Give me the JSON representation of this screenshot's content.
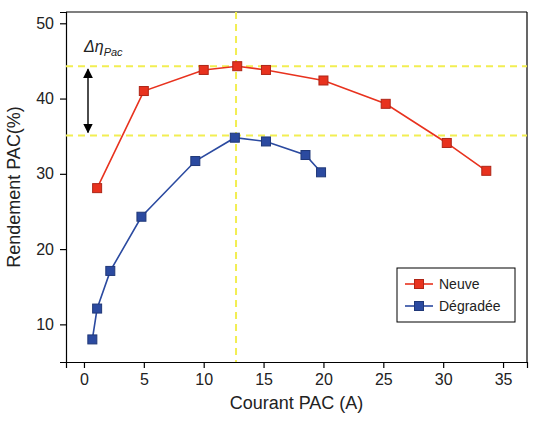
{
  "chart_data": {
    "type": "line",
    "x_label": "Courant PAC (A)",
    "y_label": "Rendement PAC(%)",
    "xlim": [
      -1.5,
      37
    ],
    "xticks": [
      0,
      5,
      10,
      15,
      20,
      25,
      30,
      35
    ],
    "ylim": [
      5,
      51.5
    ],
    "yticks": [
      10,
      20,
      30,
      40,
      50
    ],
    "legend": "lower right",
    "series": [
      {
        "name": "Neuve",
        "color": "#e8321e",
        "marker": "square",
        "line_style": "solid",
        "x": [
          1.1,
          5,
          10,
          12.8,
          15.2,
          20,
          25.2,
          30.3,
          33.6
        ],
        "values": [
          28.1,
          41,
          43.8,
          44.3,
          43.8,
          42.4,
          39.3,
          34.1,
          30.4
        ]
      },
      {
        "name": "Dégradée",
        "color": "#2b4aa0",
        "marker": "square",
        "line_style": "solid",
        "x": [
          0.7,
          1.1,
          2.2,
          4.8,
          9.3,
          12.6,
          15.2,
          18.5,
          19.8
        ],
        "values": [
          8,
          12.1,
          17.1,
          24.3,
          31.7,
          34.8,
          34.3,
          32.5,
          30.2
        ]
      }
    ],
    "hlines": [
      44.3,
      35.1
    ],
    "vlines": [
      12.7
    ],
    "annotation": {
      "text": "Δη",
      "subscript": "Pac",
      "y": [
        35.1,
        44.3
      ]
    }
  }
}
